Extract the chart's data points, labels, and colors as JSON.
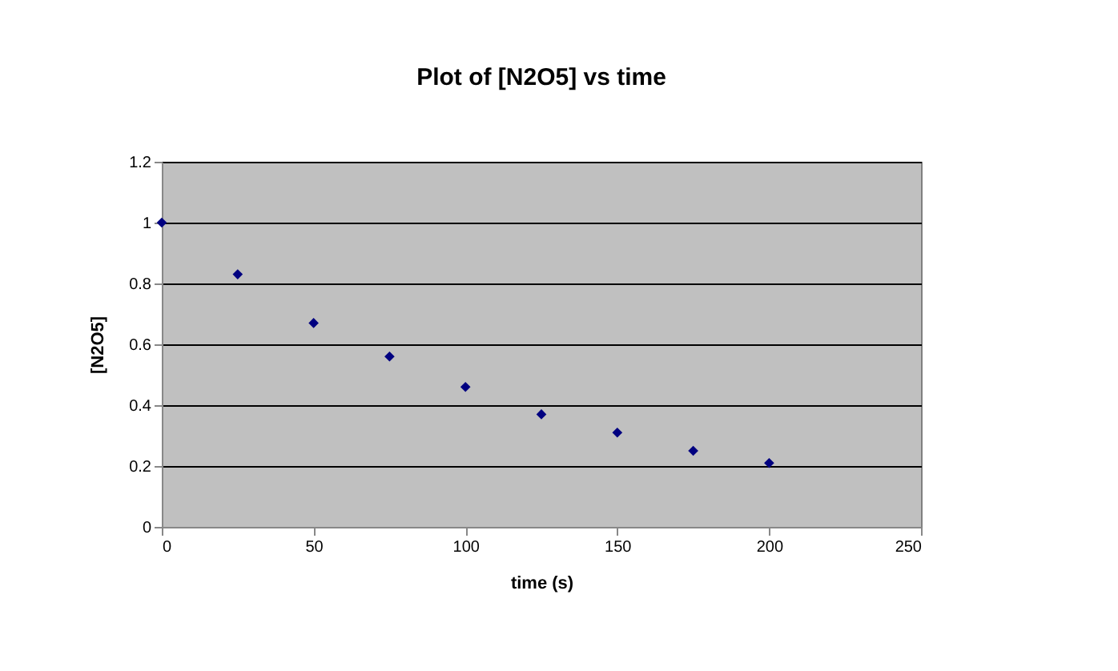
{
  "chart_data": {
    "type": "scatter",
    "title": "Plot of [N2O5] vs time",
    "xlabel": "time (s)",
    "ylabel": "[N2O5]",
    "x": [
      0,
      25,
      50,
      75,
      100,
      125,
      150,
      175,
      200
    ],
    "series": [
      {
        "color": "#000080",
        "values": [
          1.0,
          0.83,
          0.67,
          0.56,
          0.46,
          0.37,
          0.31,
          0.25,
          0.21
        ]
      }
    ],
    "xlim": [
      0,
      250
    ],
    "xticks": [
      0,
      50,
      100,
      150,
      200,
      250
    ],
    "ylim": [
      0,
      1.2
    ],
    "yticks": [
      0,
      0.2,
      0.4,
      0.6,
      0.8,
      1,
      1.2
    ],
    "grid": "y",
    "marker": "diamond",
    "legend": false
  }
}
